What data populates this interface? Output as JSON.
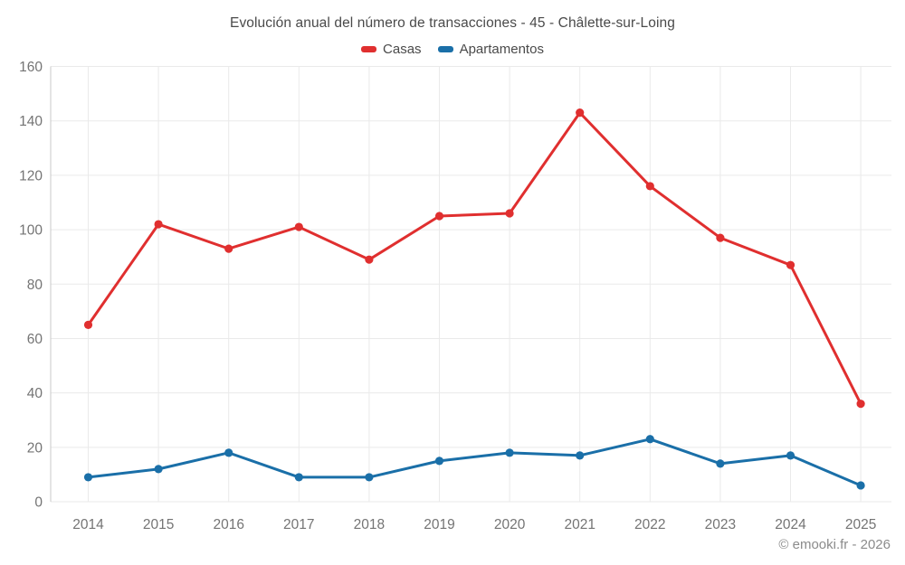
{
  "title": "Evolución anual del número de transacciones - 45 - Châlette-sur-Loing",
  "attribution": "© emooki.fr - 2026",
  "colors": {
    "casas": "#e02f2f",
    "apartamentos": "#1a6fa8",
    "grid": "#eaeaea",
    "axis": "#c8c8c8",
    "tick_text": "#747474",
    "title_text": "#4a4a4a",
    "background": "#ffffff"
  },
  "chart_data": {
    "type": "line",
    "title": "Evolución anual del número de transacciones - 45 - Châlette-sur-Loing",
    "categories": [
      "2014",
      "2015",
      "2016",
      "2017",
      "2018",
      "2019",
      "2020",
      "2021",
      "2022",
      "2023",
      "2024",
      "2025"
    ],
    "series": [
      {
        "name": "Casas",
        "color": "#e02f2f",
        "values": [
          65,
          102,
          93,
          101,
          89,
          105,
          106,
          143,
          116,
          97,
          87,
          36
        ]
      },
      {
        "name": "Apartamentos",
        "color": "#1a6fa8",
        "values": [
          9,
          12,
          18,
          9,
          9,
          15,
          18,
          17,
          23,
          14,
          17,
          6
        ]
      }
    ],
    "xlabel": "",
    "ylabel": "",
    "ylim": [
      0,
      160
    ],
    "yticks": [
      0,
      20,
      40,
      60,
      80,
      100,
      120,
      140,
      160
    ],
    "grid": true,
    "legend_position": "top",
    "marker": "circle"
  }
}
